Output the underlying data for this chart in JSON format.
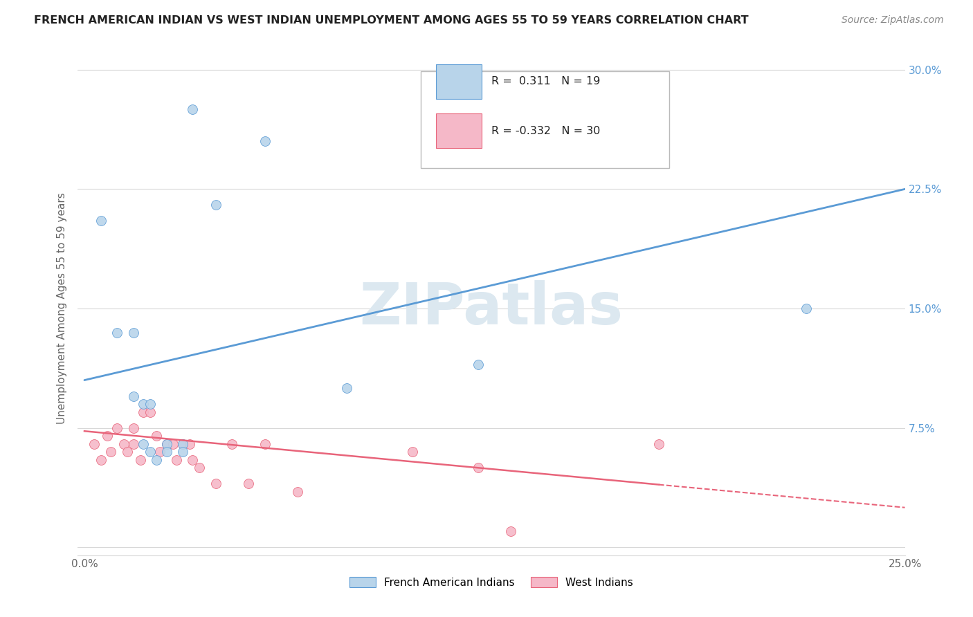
{
  "title": "FRENCH AMERICAN INDIAN VS WEST INDIAN UNEMPLOYMENT AMONG AGES 55 TO 59 YEARS CORRELATION CHART",
  "source": "Source: ZipAtlas.com",
  "ylabel": "Unemployment Among Ages 55 to 59 years",
  "xlabel": "",
  "xlim": [
    -0.002,
    0.25
  ],
  "ylim": [
    -0.005,
    0.305
  ],
  "background_color": "#ffffff",
  "watermark": "ZIPatlas",
  "watermark_color": "#dce8f0",
  "legend_R1": "0.311",
  "legend_N1": "19",
  "legend_R2": "-0.332",
  "legend_N2": "30",
  "series1_color": "#b8d4ea",
  "series2_color": "#f5b8c8",
  "trendline1_color": "#5b9bd5",
  "trendline2_color": "#e8647a",
  "blue_scatter_x": [
    0.005,
    0.01,
    0.015,
    0.015,
    0.018,
    0.018,
    0.02,
    0.02,
    0.022,
    0.025,
    0.025,
    0.03,
    0.03,
    0.033,
    0.04,
    0.055,
    0.08,
    0.12,
    0.22
  ],
  "blue_scatter_y": [
    0.205,
    0.135,
    0.135,
    0.095,
    0.09,
    0.065,
    0.09,
    0.06,
    0.055,
    0.065,
    0.06,
    0.065,
    0.06,
    0.275,
    0.215,
    0.255,
    0.1,
    0.115,
    0.15
  ],
  "pink_scatter_x": [
    0.003,
    0.005,
    0.007,
    0.008,
    0.01,
    0.012,
    0.013,
    0.015,
    0.015,
    0.017,
    0.018,
    0.02,
    0.022,
    0.023,
    0.025,
    0.027,
    0.028,
    0.03,
    0.032,
    0.033,
    0.035,
    0.04,
    0.045,
    0.05,
    0.055,
    0.065,
    0.1,
    0.12,
    0.13,
    0.175
  ],
  "pink_scatter_y": [
    0.065,
    0.055,
    0.07,
    0.06,
    0.075,
    0.065,
    0.06,
    0.075,
    0.065,
    0.055,
    0.085,
    0.085,
    0.07,
    0.06,
    0.065,
    0.065,
    0.055,
    0.065,
    0.065,
    0.055,
    0.05,
    0.04,
    0.065,
    0.04,
    0.065,
    0.035,
    0.06,
    0.05,
    0.01,
    0.065
  ],
  "blue_trend_x0": 0.0,
  "blue_trend_y0": 0.105,
  "blue_trend_x1": 0.25,
  "blue_trend_y1": 0.225,
  "pink_trend_x0": 0.0,
  "pink_trend_y0": 0.073,
  "pink_trend_x1": 0.25,
  "pink_trend_y1": 0.025,
  "pink_trend_dash_x1": 0.25,
  "pink_trend_dash_y1": 0.01,
  "grid_color": "#d8d8d8",
  "tick_color": "#666666",
  "right_tick_color": "#5b9bd5",
  "ytick_positions": [
    0.0,
    0.075,
    0.15,
    0.225,
    0.3
  ],
  "ytick_labels": [
    "",
    "7.5%",
    "15.0%",
    "22.5%",
    "30.0%"
  ],
  "xtick_positions": [
    0.0,
    0.05,
    0.1,
    0.15,
    0.2,
    0.25
  ],
  "xtick_labels": [
    "0.0%",
    "",
    "",
    "",
    "",
    "25.0%"
  ]
}
